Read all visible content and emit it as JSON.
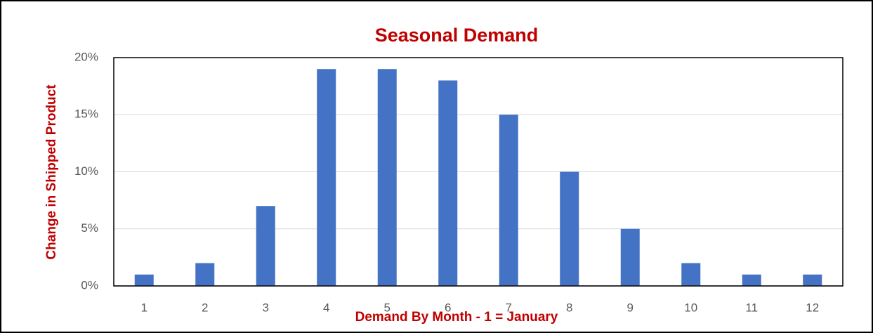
{
  "chart_data": {
    "type": "bar",
    "title": "Seasonal Demand",
    "x_label": "Demand By Month - 1 = January",
    "y_label": "Change in Shipped Product",
    "categories": [
      "1",
      "2",
      "3",
      "4",
      "5",
      "6",
      "7",
      "8",
      "9",
      "10",
      "11",
      "12"
    ],
    "values": [
      1,
      2,
      7,
      19,
      19,
      18,
      15,
      10,
      5,
      2,
      1,
      1
    ],
    "color": "#4472c4",
    "ylim": [
      0,
      20
    ],
    "yticks": [
      {
        "value": 0,
        "label": "0%"
      },
      {
        "value": 5,
        "label": "5%"
      },
      {
        "value": 10,
        "label": "10%"
      },
      {
        "value": 15,
        "label": "15%"
      },
      {
        "value": 20,
        "label": "20%"
      }
    ],
    "grid": true
  }
}
